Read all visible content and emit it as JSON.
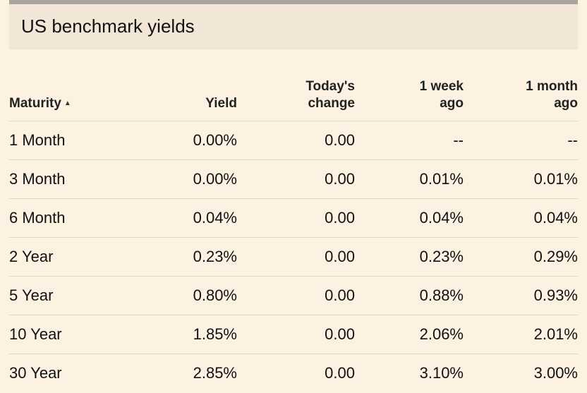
{
  "title": "US benchmark yields",
  "headers": {
    "maturity": "Maturity",
    "yield": "Yield",
    "change_line1": "Today's",
    "change_line2": "change",
    "week_line1": "1 week",
    "week_line2": "ago",
    "month_line1": "1 month",
    "month_line2": "ago"
  },
  "sort_icon": "sort-ascending-icon",
  "rows": [
    {
      "maturity": "1 Month",
      "yield": "0.00%",
      "change": "0.00",
      "week_ago": "--",
      "month_ago": "--"
    },
    {
      "maturity": "3 Month",
      "yield": "0.00%",
      "change": "0.00",
      "week_ago": "0.01%",
      "month_ago": "0.01%"
    },
    {
      "maturity": "6 Month",
      "yield": "0.04%",
      "change": "0.00",
      "week_ago": "0.04%",
      "month_ago": "0.04%"
    },
    {
      "maturity": "2 Year",
      "yield": "0.23%",
      "change": "0.00",
      "week_ago": "0.23%",
      "month_ago": "0.29%"
    },
    {
      "maturity": "5 Year",
      "yield": "0.80%",
      "change": "0.00",
      "week_ago": "0.88%",
      "month_ago": "0.93%"
    },
    {
      "maturity": "10 Year",
      "yield": "1.85%",
      "change": "0.00",
      "week_ago": "2.06%",
      "month_ago": "2.01%"
    },
    {
      "maturity": "30 Year",
      "yield": "2.85%",
      "change": "0.00",
      "week_ago": "3.10%",
      "month_ago": "3.00%"
    }
  ]
}
